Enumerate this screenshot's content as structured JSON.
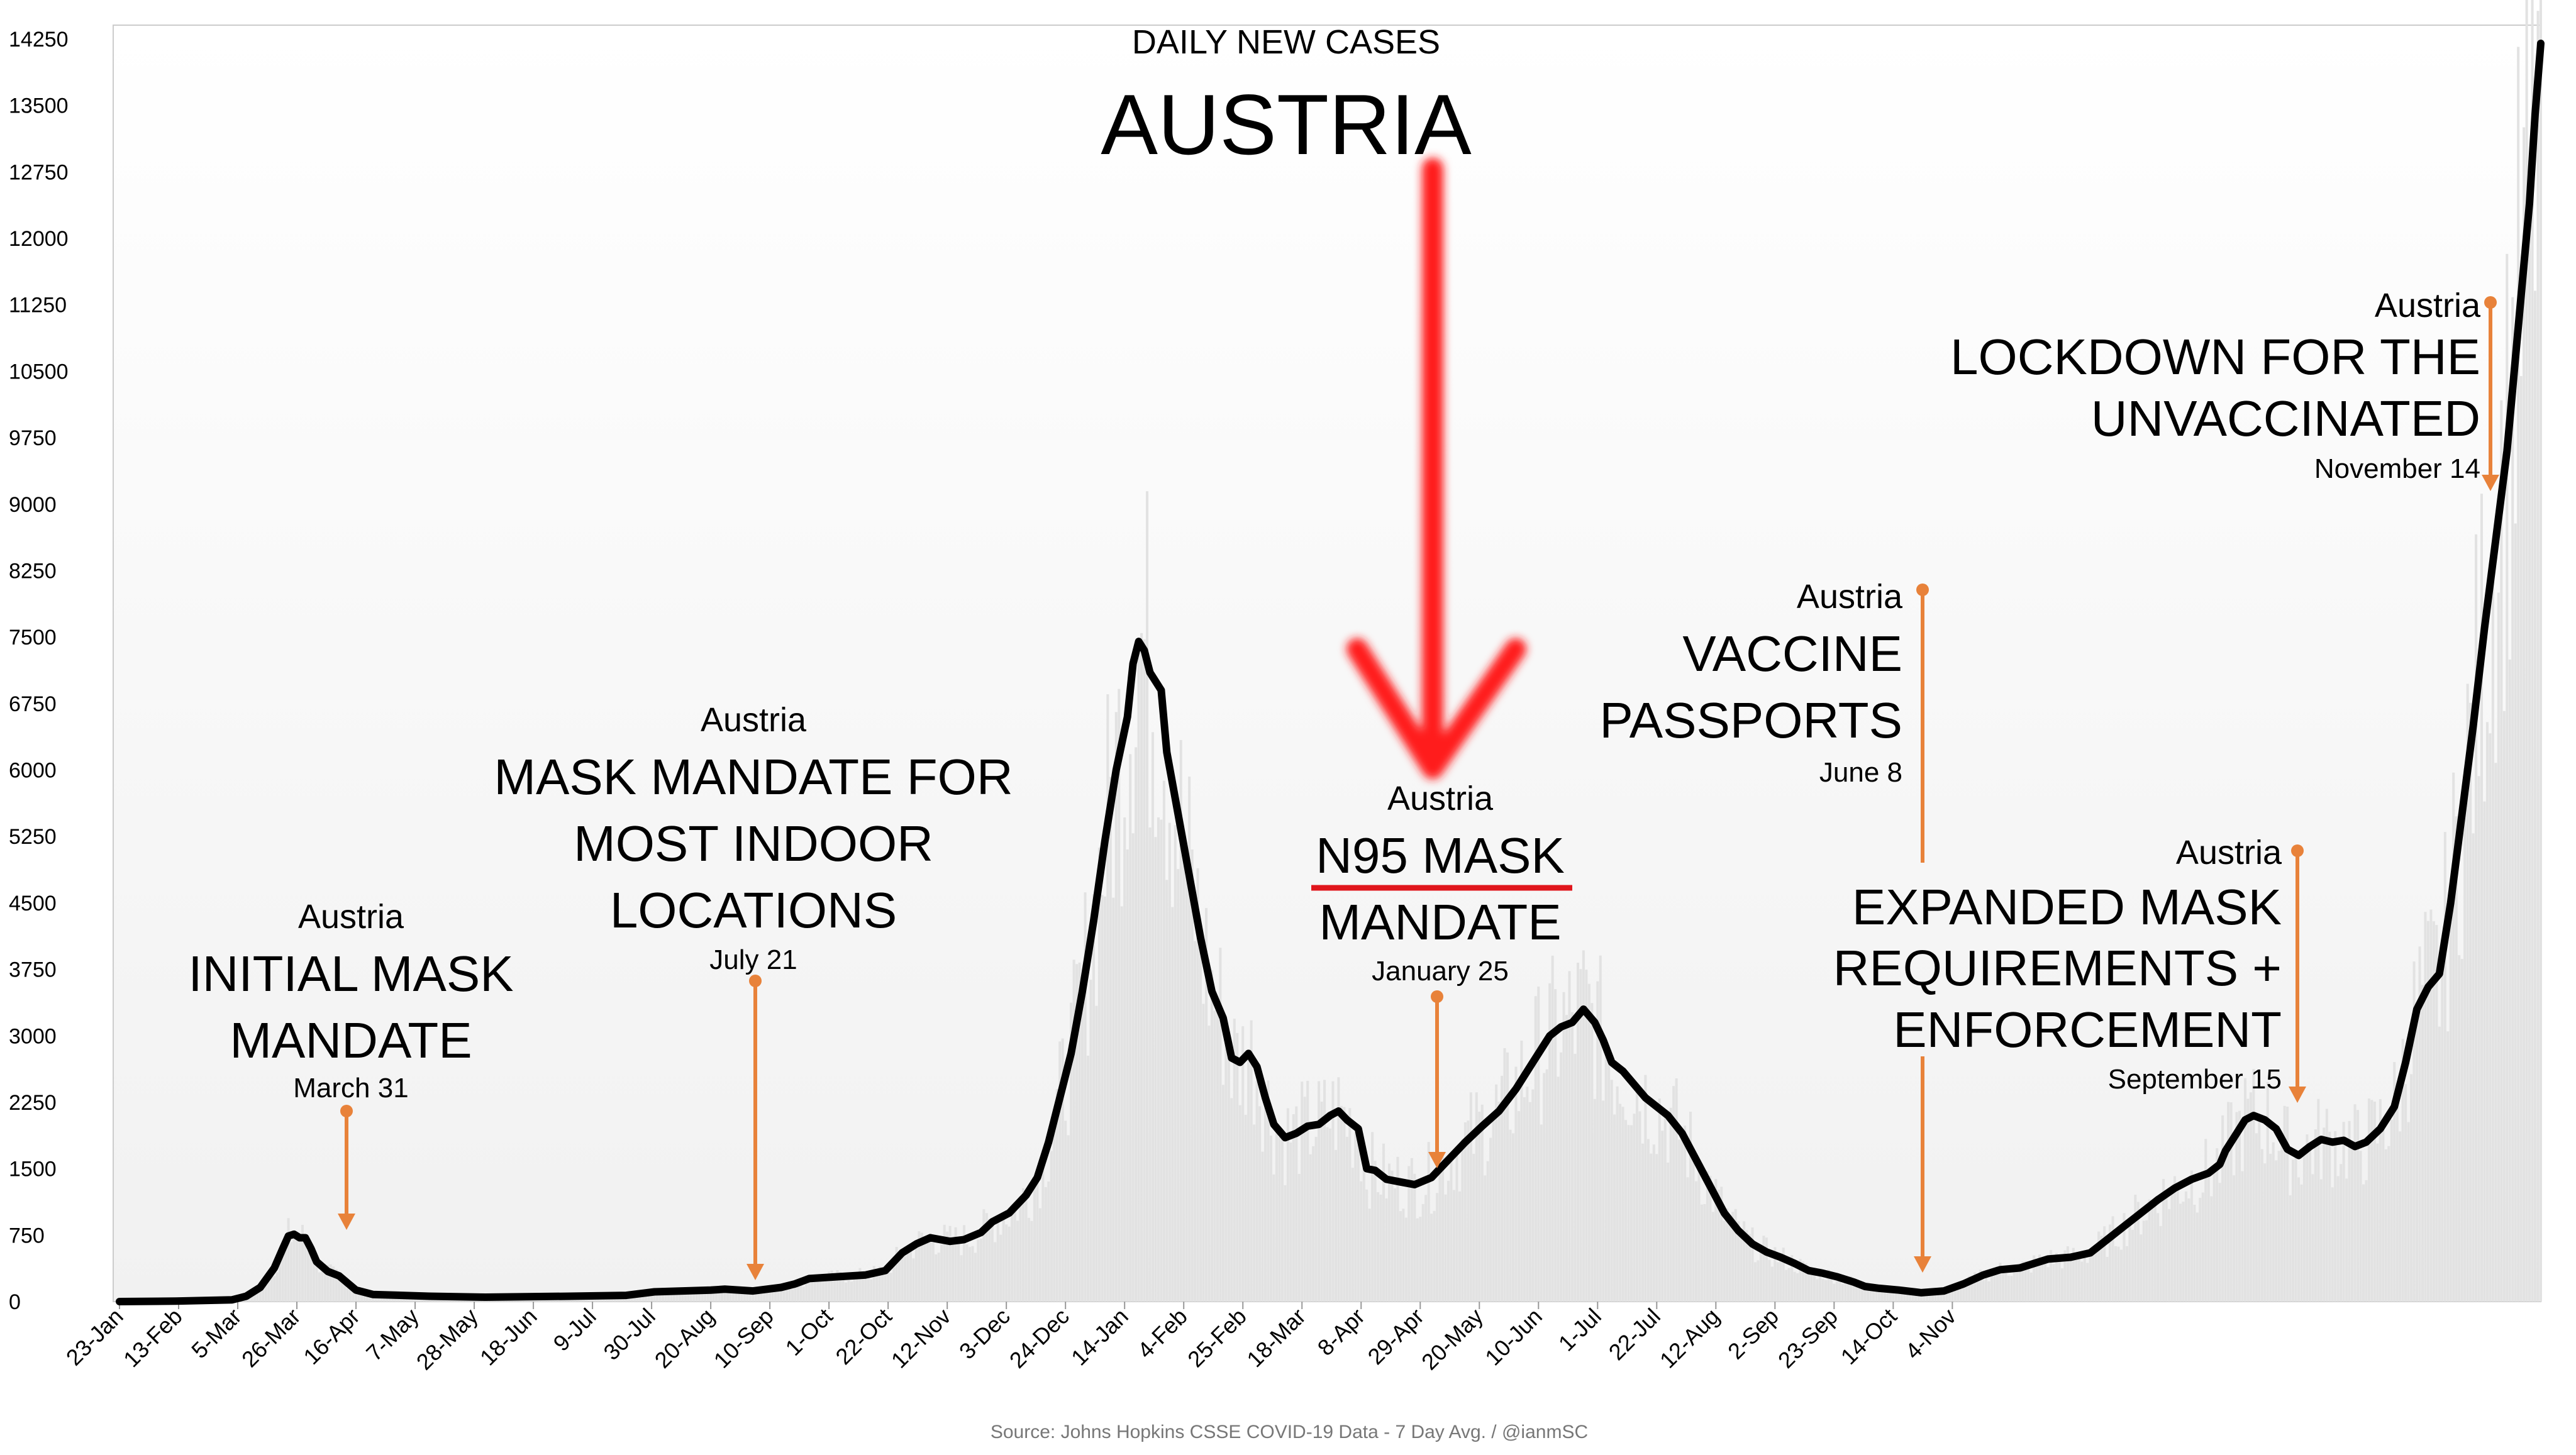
{
  "chart_data": {
    "type": "line",
    "title": "DAILY NEW CASES",
    "subtitle": "AUSTRIA",
    "source": "Source: Johns Hopkins CSSE COVID-19 Data - 7 Day Avg. / @ianmSC",
    "x_start_label": "23-Jan",
    "categories": [
      "23-Jan",
      "13-Feb",
      "5-Mar",
      "26-Mar",
      "16-Apr",
      "7-May",
      "28-May",
      "18-Jun",
      "9-Jul",
      "30-Jul",
      "20-Aug",
      "10-Sep",
      "1-Oct",
      "22-Oct",
      "12-Nov",
      "3-Dec",
      "24-Dec",
      "14-Jan",
      "4-Feb",
      "25-Feb",
      "18-Mar",
      "8-Apr",
      "29-Apr",
      "20-May",
      "10-Jun",
      "1-Jul",
      "22-Jul",
      "12-Aug",
      "2-Sep",
      "23-Sep",
      "14-Oct",
      "4-Nov"
    ],
    "yticks": [
      0,
      750,
      1500,
      2250,
      3000,
      3750,
      4500,
      5250,
      6000,
      6750,
      7500,
      8250,
      9000,
      9750,
      10500,
      11250,
      12000,
      12750,
      13500,
      14250
    ],
    "ylim": [
      0,
      14250
    ],
    "series": [
      {
        "values": [
          [
            0,
            0
          ],
          [
            20,
            5
          ],
          [
            40,
            20
          ],
          [
            45,
            60
          ],
          [
            50,
            160
          ],
          [
            55,
            380
          ],
          [
            58,
            600
          ],
          [
            60,
            740
          ],
          [
            62,
            760
          ],
          [
            64,
            720
          ],
          [
            66,
            720
          ],
          [
            68,
            600
          ],
          [
            70,
            450
          ],
          [
            74,
            340
          ],
          [
            78,
            290
          ],
          [
            84,
            130
          ],
          [
            90,
            80
          ],
          [
            110,
            60
          ],
          [
            130,
            50
          ],
          [
            160,
            60
          ],
          [
            180,
            70
          ],
          [
            190,
            110
          ],
          [
            200,
            120
          ],
          [
            210,
            130
          ],
          [
            215,
            140
          ],
          [
            225,
            120
          ],
          [
            235,
            160
          ],
          [
            240,
            200
          ],
          [
            245,
            260
          ],
          [
            255,
            280
          ],
          [
            265,
            300
          ],
          [
            272,
            350
          ],
          [
            278,
            550
          ],
          [
            283,
            650
          ],
          [
            288,
            720
          ],
          [
            295,
            680
          ],
          [
            300,
            700
          ],
          [
            306,
            780
          ],
          [
            310,
            900
          ],
          [
            316,
            1000
          ],
          [
            322,
            1200
          ],
          [
            326,
            1400
          ],
          [
            330,
            1800
          ],
          [
            334,
            2300
          ],
          [
            338,
            2800
          ],
          [
            342,
            3500
          ],
          [
            346,
            4300
          ],
          [
            350,
            5200
          ],
          [
            354,
            6000
          ],
          [
            358,
            6600
          ],
          [
            360,
            7200
          ],
          [
            362,
            7450
          ],
          [
            364,
            7350
          ],
          [
            366,
            7100
          ],
          [
            370,
            6900
          ],
          [
            372,
            6200
          ],
          [
            376,
            5500
          ],
          [
            380,
            4800
          ],
          [
            384,
            4100
          ],
          [
            388,
            3500
          ],
          [
            392,
            3200
          ],
          [
            395,
            2750
          ],
          [
            398,
            2700
          ],
          [
            401,
            2800
          ],
          [
            404,
            2650
          ],
          [
            407,
            2300
          ],
          [
            410,
            2000
          ],
          [
            414,
            1850
          ],
          [
            418,
            1900
          ],
          [
            422,
            1980
          ],
          [
            426,
            2000
          ],
          [
            430,
            2100
          ],
          [
            433,
            2150
          ],
          [
            436,
            2050
          ],
          [
            440,
            1950
          ],
          [
            443,
            1500
          ],
          [
            446,
            1480
          ],
          [
            450,
            1380
          ],
          [
            455,
            1350
          ],
          [
            460,
            1320
          ],
          [
            466,
            1400
          ],
          [
            472,
            1600
          ],
          [
            478,
            1800
          ],
          [
            484,
            1980
          ],
          [
            490,
            2150
          ],
          [
            496,
            2400
          ],
          [
            502,
            2700
          ],
          [
            508,
            3000
          ],
          [
            512,
            3100
          ],
          [
            516,
            3150
          ],
          [
            520,
            3300
          ],
          [
            524,
            3150
          ],
          [
            527,
            2950
          ],
          [
            530,
            2700
          ],
          [
            534,
            2600
          ],
          [
            538,
            2450
          ],
          [
            542,
            2300
          ],
          [
            546,
            2200
          ],
          [
            550,
            2100
          ],
          [
            555,
            1900
          ],
          [
            560,
            1600
          ],
          [
            565,
            1300
          ],
          [
            570,
            1000
          ],
          [
            575,
            800
          ],
          [
            580,
            650
          ],
          [
            585,
            560
          ],
          [
            590,
            500
          ],
          [
            595,
            430
          ],
          [
            600,
            350
          ],
          [
            605,
            320
          ],
          [
            610,
            280
          ],
          [
            616,
            220
          ],
          [
            620,
            170
          ],
          [
            625,
            150
          ],
          [
            632,
            130
          ],
          [
            640,
            100
          ],
          [
            648,
            120
          ],
          [
            655,
            200
          ],
          [
            662,
            300
          ],
          [
            668,
            360
          ],
          [
            675,
            380
          ],
          [
            680,
            430
          ],
          [
            685,
            480
          ],
          [
            693,
            500
          ],
          [
            700,
            550
          ],
          [
            706,
            700
          ],
          [
            712,
            850
          ],
          [
            718,
            1000
          ],
          [
            724,
            1150
          ],
          [
            730,
            1280
          ],
          [
            736,
            1380
          ],
          [
            742,
            1450
          ],
          [
            746,
            1550
          ],
          [
            748,
            1700
          ],
          [
            752,
            1900
          ],
          [
            755,
            2050
          ],
          [
            758,
            2100
          ],
          [
            762,
            2050
          ],
          [
            766,
            1950
          ],
          [
            770,
            1720
          ],
          [
            774,
            1650
          ],
          [
            778,
            1750
          ],
          [
            782,
            1830
          ],
          [
            786,
            1800
          ],
          [
            790,
            1820
          ],
          [
            794,
            1750
          ],
          [
            798,
            1800
          ],
          [
            803,
            1950
          ],
          [
            808,
            2200
          ],
          [
            812,
            2700
          ],
          [
            816,
            3300
          ],
          [
            820,
            3550
          ],
          [
            824,
            3700
          ],
          [
            828,
            4500
          ],
          [
            832,
            5500
          ],
          [
            836,
            6500
          ],
          [
            840,
            7600
          ],
          [
            844,
            8600
          ],
          [
            848,
            9600
          ],
          [
            852,
            11000
          ],
          [
            856,
            12400
          ],
          [
            858,
            13400
          ],
          [
            860,
            14200
          ]
        ]
      }
    ],
    "x_range": [
      0,
      860
    ],
    "annotations": [
      {
        "country": "Austria",
        "lines": [
          "INITIAL MASK",
          "MANDATE"
        ],
        "date": "March 31"
      },
      {
        "country": "Austria",
        "lines": [
          "MASK MANDATE FOR",
          "MOST INDOOR",
          "LOCATIONS"
        ],
        "date": "July 21"
      },
      {
        "country": "Austria",
        "lines": [
          "N95 MASK",
          "MANDATE"
        ],
        "date": "January 25"
      },
      {
        "country": "Austria",
        "lines": [
          "VACCINE",
          "PASSPORTS"
        ],
        "date": "June 8"
      },
      {
        "country": "Austria",
        "lines": [
          "EXPANDED MASK",
          "REQUIREMENTS +",
          "ENFORCEMENT"
        ],
        "date": "September 15"
      },
      {
        "country": "Austria",
        "lines": [
          "LOCKDOWN FOR THE",
          "UNVACCINATED"
        ],
        "date": "November 14"
      }
    ],
    "colors": {
      "line": "#000000",
      "bars": "#e2e2e2",
      "annotation_arrow": "#e8823a",
      "highlight_arrow": "#ff1a1a",
      "highlight_underline": "#e0161c"
    },
    "grid": false
  }
}
